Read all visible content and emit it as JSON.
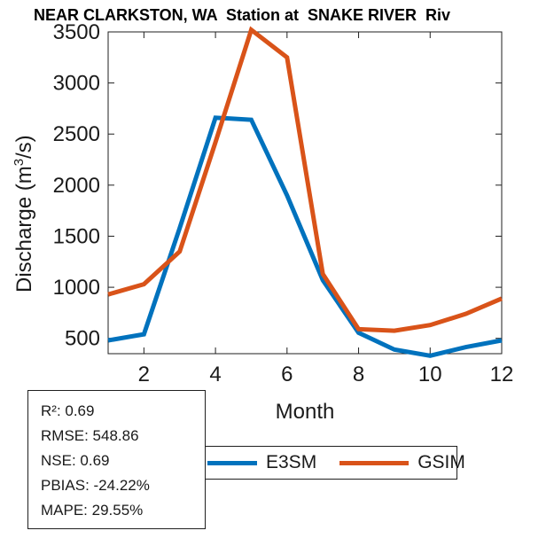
{
  "chart_data": {
    "type": "line",
    "title": "NEAR CLARKSTON, WA  Station at  SNAKE RIVER  Riv",
    "xlabel": "Month",
    "ylabel": "Discharge (m³/s)",
    "ylabel_parts": {
      "pre": "Discharge (m",
      "sup": "3",
      "post": "/s)"
    },
    "x": [
      1,
      2,
      3,
      4,
      5,
      6,
      7,
      8,
      9,
      10,
      11,
      12
    ],
    "series": [
      {
        "name": "E3SM",
        "color": "#0072BD",
        "values": [
          480,
          540,
          1580,
          2660,
          2640,
          1900,
          1070,
          555,
          390,
          330,
          415,
          480
        ]
      },
      {
        "name": "GSIM",
        "color": "#D95319",
        "values": [
          930,
          1030,
          1350,
          2420,
          3520,
          3250,
          1130,
          590,
          575,
          630,
          740,
          890
        ]
      }
    ],
    "xticks": [
      2,
      4,
      6,
      8,
      10,
      12
    ],
    "yticks": [
      500,
      1000,
      1500,
      2000,
      2500,
      3000,
      3500
    ],
    "xlim": [
      1,
      12
    ],
    "ylim": [
      350,
      3500
    ],
    "grid": false,
    "legend_position": "below-axis"
  },
  "stats": {
    "lines": [
      "R²: 0.69",
      "RMSE: 548.86",
      "NSE: 0.69",
      "PBIAS: -24.22%",
      "MAPE: 29.55%"
    ]
  },
  "axis_color": "#1f1f1f"
}
